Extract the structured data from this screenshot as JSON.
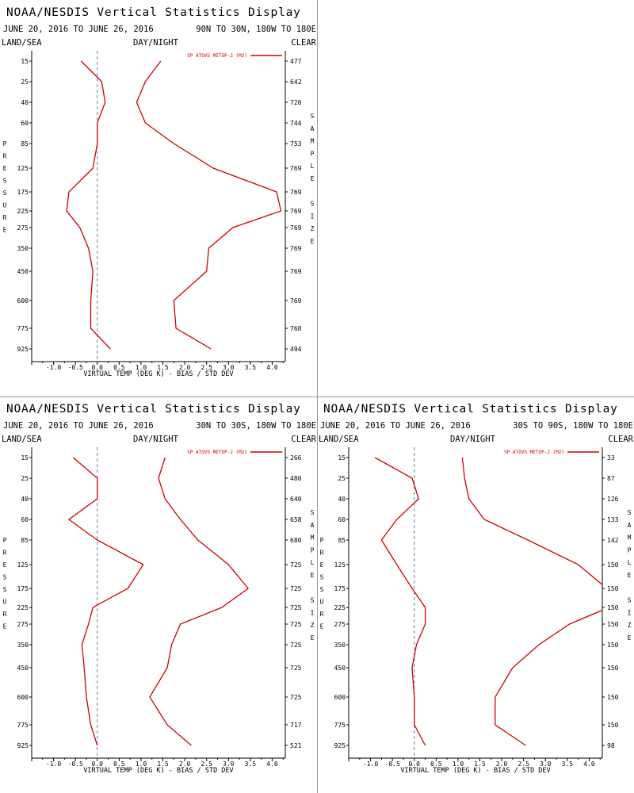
{
  "header": {
    "title": "NOAA/NESDIS Vertical Statistics Display",
    "date_range": "JUNE 20, 2016 TO JUNE 26, 2016",
    "land_sea": "LAND/SEA",
    "day_night": "DAY/NIGHT",
    "clear": "CLEAR",
    "pressure_axis_label": [
      "P",
      "R",
      "E",
      "S",
      "S",
      "U",
      "R",
      "E"
    ],
    "sample_size_label": [
      "S",
      "A",
      "M",
      "P",
      "L",
      "E",
      "",
      "S",
      "I",
      "Z",
      "E"
    ],
    "xlabel": "VIRTUAL TEMP (DEG K) - BIAS / STD DEV"
  },
  "colors": {
    "line": "#d00000",
    "zero_line": "#7080a0"
  },
  "chart_data": [
    {
      "type": "line",
      "region": "90N TO 30N, 180W TO 180E",
      "legend": "SP ATOVS METOP-2 (M2)",
      "legend_position": "top-right",
      "pressure_levels": [
        15,
        25,
        40,
        60,
        85,
        125,
        175,
        225,
        275,
        350,
        450,
        600,
        775,
        925
      ],
      "xlim": [
        -1.5,
        4.3
      ],
      "xticks": [
        -1.0,
        -0.5,
        0.0,
        0.5,
        1.0,
        1.5,
        2.0,
        2.5,
        3.0,
        3.5,
        4.0
      ],
      "xtick_labels": [
        "-1.0",
        "-0.5",
        "0.0",
        "0.5",
        "1.0",
        "1.5",
        "2.0",
        "2.5",
        "3.0",
        "3.5",
        "4.0"
      ],
      "series": [
        {
          "name": "BIAS",
          "values": [
            -0.37,
            0.1,
            0.18,
            0.0,
            0.0,
            -0.1,
            -0.65,
            -0.7,
            -0.4,
            -0.2,
            -0.1,
            -0.15,
            -0.15,
            0.3
          ]
        },
        {
          "name": "STD DEV",
          "values": [
            1.45,
            1.1,
            0.9,
            1.1,
            1.75,
            2.65,
            4.1,
            4.2,
            3.1,
            2.55,
            2.5,
            1.75,
            1.8,
            2.6
          ]
        }
      ],
      "sample_size": [
        477,
        642,
        720,
        744,
        753,
        769,
        769,
        769,
        769,
        769,
        769,
        769,
        768,
        494
      ]
    },
    {
      "type": "line",
      "region": "30N TO 30S, 180W TO 180E",
      "legend": "SP ATOVS METOP-2 (M2)",
      "legend_position": "top-right",
      "pressure_levels": [
        15,
        25,
        40,
        60,
        85,
        125,
        175,
        225,
        275,
        350,
        450,
        600,
        775,
        925
      ],
      "xlim": [
        -1.5,
        4.3
      ],
      "xticks": [
        -1.0,
        -0.5,
        0.0,
        0.5,
        1.0,
        1.5,
        2.0,
        2.5,
        3.0,
        3.5,
        4.0
      ],
      "xtick_labels": [
        "-1.0",
        "-0.5",
        "0.0",
        "0.5",
        "1.0",
        "1.5",
        "2.0",
        "2.5",
        "3.0",
        "3.5",
        "4.0"
      ],
      "series": [
        {
          "name": "BIAS",
          "values": [
            -0.55,
            0.0,
            0.0,
            -0.65,
            0.0,
            1.05,
            0.7,
            -0.1,
            -0.2,
            -0.35,
            -0.3,
            -0.25,
            -0.15,
            0.0
          ]
        },
        {
          "name": "STD DEV",
          "values": [
            1.55,
            1.4,
            1.55,
            1.9,
            2.3,
            3.0,
            3.45,
            2.85,
            1.9,
            1.7,
            1.6,
            1.2,
            1.6,
            2.15
          ]
        }
      ],
      "sample_size": [
        266,
        480,
        640,
        658,
        680,
        725,
        725,
        725,
        725,
        725,
        725,
        725,
        717,
        521
      ]
    },
    {
      "type": "line",
      "region": "30S TO 90S, 180W TO 180E",
      "legend": "SP ATOVS METOP-2 (M2)",
      "legend_position": "top-right",
      "pressure_levels": [
        15,
        25,
        40,
        60,
        85,
        125,
        175,
        225,
        275,
        350,
        450,
        600,
        775,
        925
      ],
      "xlim": [
        -1.5,
        4.3
      ],
      "xticks": [
        -1.0,
        -0.5,
        0.0,
        0.5,
        1.0,
        1.5,
        2.0,
        2.5,
        3.0,
        3.5,
        4.0
      ],
      "xtick_labels": [
        "-1.0",
        "-0.5",
        "0.0",
        "0.5",
        "1.0",
        "1.5",
        "2.0",
        "2.5",
        "3.0",
        "3.5",
        "4.0"
      ],
      "series": [
        {
          "name": "BIAS",
          "values": [
            -0.9,
            -0.05,
            0.1,
            -0.4,
            -0.75,
            -0.4,
            -0.05,
            0.25,
            0.25,
            0.05,
            -0.05,
            0.0,
            0.0,
            0.25
          ]
        },
        {
          "name": "STD DEV",
          "values": [
            1.1,
            1.15,
            1.25,
            1.6,
            2.6,
            3.75,
            4.4,
            4.45,
            3.55,
            2.85,
            2.25,
            1.85,
            1.85,
            2.55
          ]
        }
      ],
      "sample_size": [
        33,
        87,
        126,
        133,
        142,
        150,
        150,
        150,
        150,
        150,
        150,
        150,
        150,
        98
      ]
    }
  ]
}
